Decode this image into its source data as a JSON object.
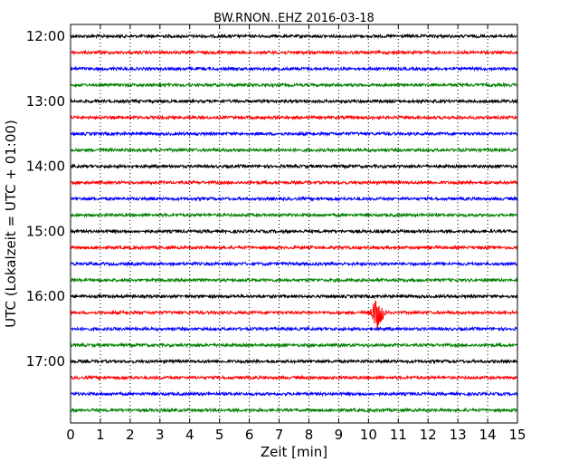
{
  "chart_data": {
    "type": "line",
    "subtype": "helicorder",
    "title": "BW.RNON..EHZ 2016-03-18",
    "xlabel": "Zeit  [min]",
    "ylabel": "UTC (Lokalzeit = UTC + 01:00)",
    "xlim": [
      0,
      15
    ],
    "x_ticks": [
      "0",
      "1",
      "2",
      "3",
      "4",
      "5",
      "6",
      "7",
      "8",
      "9",
      "10",
      "11",
      "12",
      "13",
      "14",
      "15"
    ],
    "y_tick_labels": [
      "12:00",
      "13:00",
      "14:00",
      "15:00",
      "16:00",
      "17:00"
    ],
    "vertical_grid": "dotted",
    "trace_colors": [
      "#000000",
      "#ff0000",
      "#0000ff",
      "#008000"
    ],
    "traces": [
      {
        "start": "12:00",
        "color": "#000000"
      },
      {
        "start": "12:15",
        "color": "#ff0000"
      },
      {
        "start": "12:30",
        "color": "#0000ff"
      },
      {
        "start": "12:45",
        "color": "#008000"
      },
      {
        "start": "13:00",
        "color": "#000000"
      },
      {
        "start": "13:15",
        "color": "#ff0000"
      },
      {
        "start": "13:30",
        "color": "#0000ff"
      },
      {
        "start": "13:45",
        "color": "#008000"
      },
      {
        "start": "14:00",
        "color": "#000000"
      },
      {
        "start": "14:15",
        "color": "#ff0000"
      },
      {
        "start": "14:30",
        "color": "#0000ff"
      },
      {
        "start": "14:45",
        "color": "#008000"
      },
      {
        "start": "15:00",
        "color": "#000000"
      },
      {
        "start": "15:15",
        "color": "#ff0000"
      },
      {
        "start": "15:30",
        "color": "#0000ff"
      },
      {
        "start": "15:45",
        "color": "#008000"
      },
      {
        "start": "16:00",
        "color": "#000000"
      },
      {
        "start": "16:15",
        "color": "#ff0000",
        "event": {
          "minute": 10.3,
          "duration_min": 0.8
        }
      },
      {
        "start": "16:30",
        "color": "#0000ff"
      },
      {
        "start": "16:45",
        "color": "#008000"
      },
      {
        "start": "17:00",
        "color": "#000000"
      },
      {
        "start": "17:15",
        "color": "#ff0000"
      },
      {
        "start": "17:30",
        "color": "#0000ff"
      },
      {
        "start": "17:45",
        "color": "#008000"
      }
    ]
  }
}
